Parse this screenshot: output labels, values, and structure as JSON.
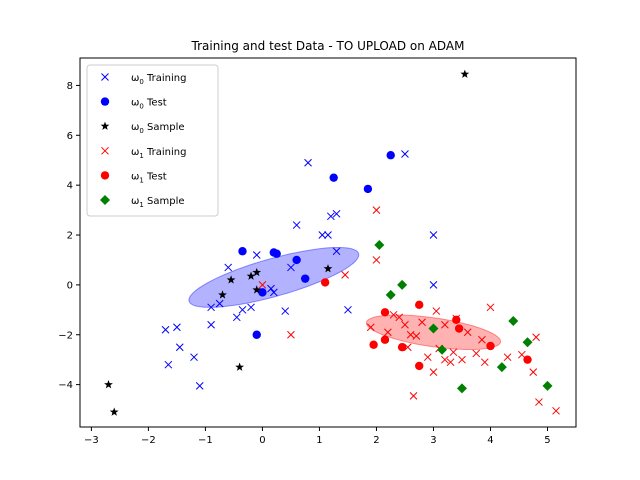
{
  "chart_data": {
    "type": "scatter",
    "title": "Training and test Data - TO UPLOAD on ADAM",
    "xlabel": "",
    "ylabel": "",
    "xlim": [
      -3.2,
      5.5
    ],
    "ylim": [
      -5.7,
      9.1
    ],
    "xticks": [
      -3,
      -2,
      -1,
      0,
      1,
      2,
      3,
      4,
      5
    ],
    "yticks": [
      -4,
      -2,
      0,
      2,
      4,
      6,
      8
    ],
    "grid": false,
    "legend_position": "top-left",
    "colors": {
      "omega0": "#0000ff",
      "omega1": "#ff0000",
      "sample0": "#000000",
      "sample1": "#008000"
    },
    "series": [
      {
        "name": "ω0 Training",
        "legend_base": "ω",
        "legend_sub": "0",
        "legend_rest": " Training",
        "marker": "x",
        "color": "#0000ff",
        "points": [
          [
            -1.7,
            -1.8
          ],
          [
            -1.5,
            -1.7
          ],
          [
            -1.65,
            -3.2
          ],
          [
            -1.45,
            -2.5
          ],
          [
            -1.2,
            -2.9
          ],
          [
            -1.1,
            -4.05
          ],
          [
            -0.9,
            -1.6
          ],
          [
            -0.9,
            -0.9
          ],
          [
            -0.75,
            -0.75
          ],
          [
            -0.6,
            0.7
          ],
          [
            -0.45,
            -1.3
          ],
          [
            -0.35,
            -1.0
          ],
          [
            -0.2,
            -0.9
          ],
          [
            -0.1,
            1.2
          ],
          [
            0.15,
            -0.15
          ],
          [
            0.2,
            -0.3
          ],
          [
            0.4,
            -1.05
          ],
          [
            0.5,
            0.7
          ],
          [
            0.6,
            2.4
          ],
          [
            0.8,
            4.9
          ],
          [
            1.05,
            2.0
          ],
          [
            1.15,
            2.0
          ],
          [
            1.2,
            2.75
          ],
          [
            1.3,
            2.85
          ],
          [
            1.3,
            1.35
          ],
          [
            1.5,
            -1.0
          ],
          [
            2.5,
            5.25
          ],
          [
            3.0,
            2.0
          ],
          [
            3.0,
            0.0
          ]
        ]
      },
      {
        "name": "ω0 Test",
        "legend_base": "ω",
        "legend_sub": "0",
        "legend_rest": " Test",
        "marker": "o",
        "color": "#0000ff",
        "points": [
          [
            -0.35,
            1.35
          ],
          [
            0.2,
            1.3
          ],
          [
            0.25,
            1.25
          ],
          [
            0.6,
            1.0
          ],
          [
            0.75,
            0.25
          ],
          [
            1.25,
            4.3
          ],
          [
            1.85,
            3.85
          ],
          [
            2.25,
            5.2
          ],
          [
            0.0,
            -0.3
          ],
          [
            -0.1,
            -2.0
          ]
        ]
      },
      {
        "name": "ω0 Sample",
        "legend_base": "ω",
        "legend_sub": "0",
        "legend_rest": " Sample",
        "marker": "*",
        "color": "#000000",
        "points": [
          [
            -2.7,
            -4.0
          ],
          [
            -2.6,
            -5.1
          ],
          [
            -0.7,
            -0.4
          ],
          [
            -0.55,
            0.2
          ],
          [
            -0.4,
            -3.3
          ],
          [
            -0.2,
            0.35
          ],
          [
            -0.1,
            0.5
          ],
          [
            -0.1,
            -0.2
          ],
          [
            1.15,
            0.65
          ],
          [
            3.55,
            8.45
          ]
        ]
      },
      {
        "name": "ω1 Training",
        "legend_base": "ω",
        "legend_sub": "1",
        "legend_rest": " Training",
        "marker": "x",
        "color": "#ff0000",
        "points": [
          [
            0.0,
            0.0
          ],
          [
            0.5,
            -2.0
          ],
          [
            1.45,
            0.4
          ],
          [
            1.9,
            -1.7
          ],
          [
            2.0,
            3.0
          ],
          [
            2.0,
            1.0
          ],
          [
            2.2,
            -1.9
          ],
          [
            2.3,
            -1.2
          ],
          [
            2.4,
            -1.3
          ],
          [
            2.5,
            -1.6
          ],
          [
            2.55,
            -2.5
          ],
          [
            2.6,
            -2.0
          ],
          [
            2.65,
            -4.45
          ],
          [
            2.7,
            -2.05
          ],
          [
            2.8,
            -1.5
          ],
          [
            2.9,
            -2.9
          ],
          [
            3.0,
            -3.5
          ],
          [
            3.05,
            -1.05
          ],
          [
            3.1,
            -2.55
          ],
          [
            3.2,
            -1.6
          ],
          [
            3.2,
            -3.0
          ],
          [
            3.3,
            -3.1
          ],
          [
            3.35,
            -2.7
          ],
          [
            3.4,
            -1.35
          ],
          [
            3.5,
            -3.0
          ],
          [
            3.6,
            -1.9
          ],
          [
            3.75,
            -2.75
          ],
          [
            3.85,
            -2.2
          ],
          [
            3.9,
            -3.1
          ],
          [
            4.0,
            -0.9
          ],
          [
            4.3,
            -2.9
          ],
          [
            4.55,
            -2.8
          ],
          [
            4.75,
            -3.5
          ],
          [
            4.8,
            -2.1
          ],
          [
            4.85,
            -4.7
          ],
          [
            5.15,
            -5.05
          ]
        ]
      },
      {
        "name": "ω1 Test",
        "legend_base": "ω",
        "legend_sub": "1",
        "legend_rest": " Test",
        "marker": "o",
        "color": "#ff0000",
        "points": [
          [
            1.1,
            0.1
          ],
          [
            1.95,
            -2.4
          ],
          [
            2.15,
            -2.2
          ],
          [
            2.15,
            -1.1
          ],
          [
            2.45,
            -2.5
          ],
          [
            2.75,
            -0.8
          ],
          [
            2.75,
            -3.25
          ],
          [
            3.4,
            -1.4
          ],
          [
            3.45,
            -1.75
          ],
          [
            4.0,
            -2.45
          ],
          [
            4.65,
            -3.0
          ]
        ]
      },
      {
        "name": "ω1 Sample",
        "legend_base": "ω",
        "legend_sub": "1",
        "legend_rest": " Sample",
        "marker": "D",
        "color": "#008000",
        "points": [
          [
            2.05,
            1.6
          ],
          [
            2.25,
            -0.4
          ],
          [
            2.45,
            0.0
          ],
          [
            3.0,
            -1.75
          ],
          [
            3.15,
            -2.6
          ],
          [
            3.5,
            -4.15
          ],
          [
            4.2,
            -3.3
          ],
          [
            4.4,
            -1.45
          ],
          [
            4.65,
            -2.3
          ],
          [
            5.0,
            -4.05
          ]
        ]
      }
    ],
    "ellipses": [
      {
        "name": "ω0 covariance",
        "color": "#0000ff",
        "center": [
          0.2,
          0.3
        ],
        "semi_major": 1.8,
        "semi_minor": 0.65,
        "angle_deg": 37
      },
      {
        "name": "ω1 covariance",
        "color": "#ff0000",
        "center": [
          3.0,
          -1.9
        ],
        "semi_major": 1.25,
        "semi_minor": 0.55,
        "angle_deg": -22
      }
    ]
  }
}
